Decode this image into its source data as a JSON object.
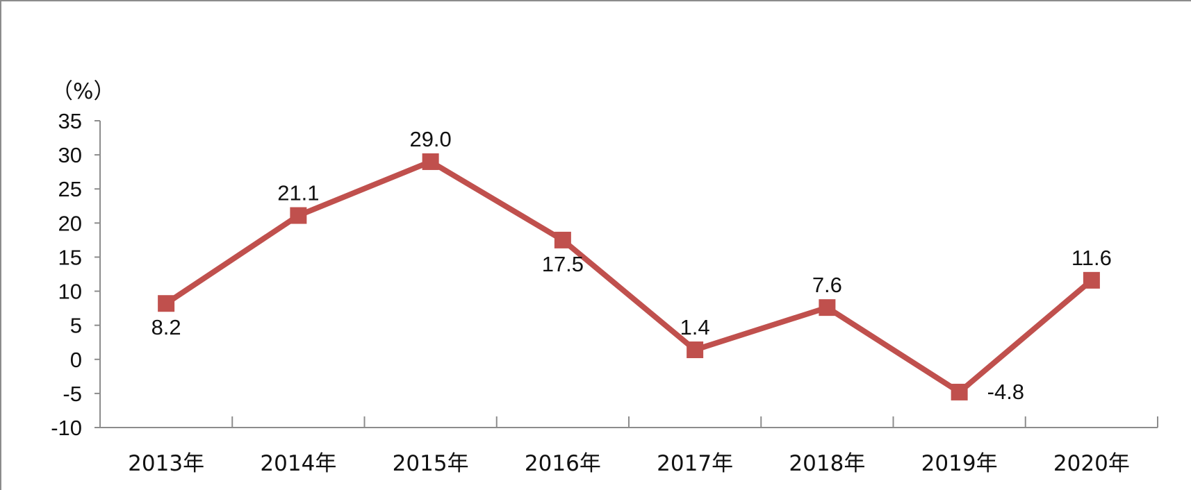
{
  "chart_data": {
    "type": "line",
    "unit_label": "（%）",
    "categories": [
      "2013年",
      "2014年",
      "2015年",
      "2016年",
      "2017年",
      "2018年",
      "2019年",
      "2020年"
    ],
    "series": [
      {
        "values": [
          8.2,
          21.1,
          29.0,
          17.5,
          1.4,
          7.6,
          -4.8,
          11.6
        ],
        "labels": [
          "8.2",
          "21.1",
          "29.0",
          "17.5",
          "1.4",
          "7.6",
          "-4.8",
          "11.6"
        ],
        "label_placement": [
          "below",
          "above",
          "above",
          "below",
          "above",
          "above",
          "right",
          "above"
        ],
        "color": "#c0504d",
        "marker": "square"
      }
    ],
    "ylim": [
      -10,
      35
    ],
    "yticks": [
      35,
      30,
      25,
      20,
      15,
      10,
      5,
      0,
      -5,
      -10
    ],
    "grid": false,
    "legend": "none",
    "title": "",
    "xlabel": "",
    "ylabel": ""
  }
}
